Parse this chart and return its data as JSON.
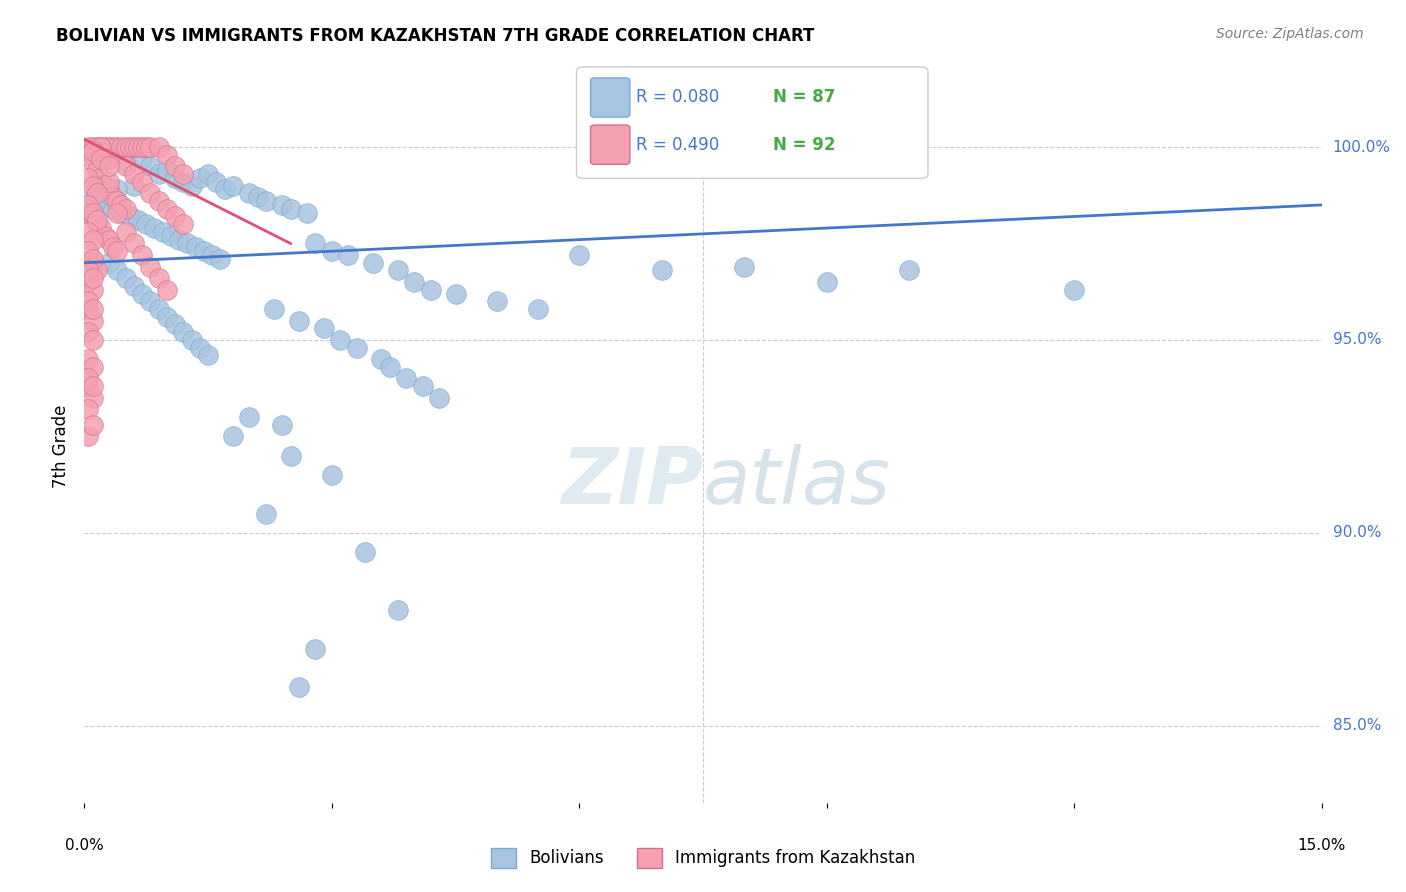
{
  "title": "BOLIVIAN VS IMMIGRANTS FROM KAZAKHSTAN 7TH GRADE CORRELATION CHART",
  "source": "Source: ZipAtlas.com",
  "ylabel": "7th Grade",
  "yticks": [
    85.0,
    90.0,
    95.0,
    100.0
  ],
  "ytick_labels": [
    "85.0%",
    "90.0%",
    "95.0%",
    "100.0%"
  ],
  "xlim": [
    0.0,
    15.0
  ],
  "ylim": [
    83.0,
    101.5
  ],
  "blue_color": "#a8c4e0",
  "pink_color": "#f4a0b0",
  "blue_edge_color": "#7aaad0",
  "pink_edge_color": "#d07090",
  "blue_line_color": "#4477cc",
  "pink_line_color": "#e05070",
  "blue_r_color": "#4477cc",
  "blue_n_color": "#44aa44",
  "pink_r_color": "#4477cc",
  "pink_n_color": "#44aa44",
  "blue_scatter": [
    [
      0.3,
      99.8
    ],
    [
      0.5,
      99.6
    ],
    [
      0.7,
      99.7
    ],
    [
      0.8,
      99.5
    ],
    [
      0.9,
      99.3
    ],
    [
      1.0,
      99.4
    ],
    [
      1.1,
      99.2
    ],
    [
      1.2,
      99.1
    ],
    [
      1.3,
      99.0
    ],
    [
      1.4,
      99.2
    ],
    [
      1.5,
      99.3
    ],
    [
      1.6,
      99.1
    ],
    [
      1.7,
      98.9
    ],
    [
      1.8,
      99.0
    ],
    [
      2.0,
      98.8
    ],
    [
      2.1,
      98.7
    ],
    [
      2.2,
      98.6
    ],
    [
      2.4,
      98.5
    ],
    [
      2.5,
      98.4
    ],
    [
      2.7,
      98.3
    ],
    [
      0.6,
      99.0
    ],
    [
      0.4,
      98.9
    ],
    [
      0.2,
      98.8
    ],
    [
      0.1,
      98.7
    ],
    [
      0.15,
      98.6
    ],
    [
      0.25,
      98.5
    ],
    [
      0.35,
      98.4
    ],
    [
      0.45,
      98.3
    ],
    [
      0.55,
      98.2
    ],
    [
      0.65,
      98.1
    ],
    [
      0.75,
      98.0
    ],
    [
      0.85,
      97.9
    ],
    [
      0.95,
      97.8
    ],
    [
      1.05,
      97.7
    ],
    [
      1.15,
      97.6
    ],
    [
      1.25,
      97.5
    ],
    [
      1.35,
      97.4
    ],
    [
      1.45,
      97.3
    ],
    [
      1.55,
      97.2
    ],
    [
      1.65,
      97.1
    ],
    [
      2.8,
      97.5
    ],
    [
      3.0,
      97.3
    ],
    [
      3.2,
      97.2
    ],
    [
      3.5,
      97.0
    ],
    [
      3.8,
      96.8
    ],
    [
      4.0,
      96.5
    ],
    [
      4.2,
      96.3
    ],
    [
      4.5,
      96.2
    ],
    [
      5.0,
      96.0
    ],
    [
      5.5,
      95.8
    ],
    [
      6.0,
      97.2
    ],
    [
      7.0,
      96.8
    ],
    [
      8.0,
      96.9
    ],
    [
      9.0,
      96.5
    ],
    [
      10.0,
      96.8
    ],
    [
      12.0,
      96.3
    ],
    [
      2.3,
      95.8
    ],
    [
      2.6,
      95.5
    ],
    [
      2.9,
      95.3
    ],
    [
      3.1,
      95.0
    ],
    [
      3.3,
      94.8
    ],
    [
      3.6,
      94.5
    ],
    [
      3.7,
      94.3
    ],
    [
      3.9,
      94.0
    ],
    [
      4.1,
      93.8
    ],
    [
      4.3,
      93.5
    ],
    [
      2.0,
      93.0
    ],
    [
      2.4,
      92.8
    ],
    [
      1.8,
      92.5
    ],
    [
      2.5,
      92.0
    ],
    [
      3.0,
      91.5
    ],
    [
      2.2,
      90.5
    ],
    [
      3.4,
      89.5
    ],
    [
      3.8,
      88.0
    ],
    [
      2.8,
      87.0
    ],
    [
      2.6,
      86.0
    ],
    [
      0.3,
      97.0
    ],
    [
      0.4,
      96.8
    ],
    [
      0.5,
      96.6
    ],
    [
      0.6,
      96.4
    ],
    [
      0.7,
      96.2
    ],
    [
      0.8,
      96.0
    ],
    [
      0.9,
      95.8
    ],
    [
      1.0,
      95.6
    ],
    [
      1.1,
      95.4
    ],
    [
      1.2,
      95.2
    ],
    [
      1.3,
      95.0
    ],
    [
      1.4,
      94.8
    ],
    [
      1.5,
      94.6
    ]
  ],
  "pink_scatter": [
    [
      0.05,
      100.0
    ],
    [
      0.1,
      100.0
    ],
    [
      0.15,
      100.0
    ],
    [
      0.2,
      100.0
    ],
    [
      0.25,
      100.0
    ],
    [
      0.3,
      100.0
    ],
    [
      0.35,
      100.0
    ],
    [
      0.4,
      100.0
    ],
    [
      0.45,
      100.0
    ],
    [
      0.5,
      100.0
    ],
    [
      0.55,
      100.0
    ],
    [
      0.6,
      100.0
    ],
    [
      0.65,
      100.0
    ],
    [
      0.7,
      100.0
    ],
    [
      0.75,
      100.0
    ],
    [
      0.8,
      100.0
    ],
    [
      0.9,
      100.0
    ],
    [
      1.0,
      99.8
    ],
    [
      1.1,
      99.5
    ],
    [
      1.2,
      99.3
    ],
    [
      0.05,
      99.8
    ],
    [
      0.1,
      99.6
    ],
    [
      0.15,
      99.4
    ],
    [
      0.2,
      99.2
    ],
    [
      0.25,
      99.0
    ],
    [
      0.3,
      98.9
    ],
    [
      0.35,
      98.7
    ],
    [
      0.4,
      98.6
    ],
    [
      0.45,
      98.5
    ],
    [
      0.5,
      98.4
    ],
    [
      0.05,
      98.3
    ],
    [
      0.1,
      98.2
    ],
    [
      0.15,
      98.0
    ],
    [
      0.2,
      97.9
    ],
    [
      0.25,
      97.7
    ],
    [
      0.3,
      97.6
    ],
    [
      0.35,
      97.4
    ],
    [
      0.4,
      97.3
    ],
    [
      0.1,
      97.0
    ],
    [
      0.15,
      96.8
    ],
    [
      0.05,
      96.5
    ],
    [
      0.1,
      96.3
    ],
    [
      0.05,
      95.8
    ],
    [
      0.1,
      95.5
    ],
    [
      0.05,
      94.5
    ],
    [
      0.1,
      94.3
    ],
    [
      0.05,
      93.8
    ],
    [
      0.1,
      93.5
    ],
    [
      0.05,
      92.5
    ],
    [
      0.5,
      99.5
    ],
    [
      0.6,
      99.3
    ],
    [
      0.7,
      99.1
    ],
    [
      0.8,
      98.8
    ],
    [
      0.9,
      98.6
    ],
    [
      1.0,
      98.4
    ],
    [
      1.1,
      98.2
    ],
    [
      1.2,
      98.0
    ],
    [
      0.3,
      99.1
    ],
    [
      0.4,
      98.3
    ],
    [
      0.5,
      97.8
    ],
    [
      0.6,
      97.5
    ],
    [
      0.7,
      97.2
    ],
    [
      0.8,
      96.9
    ],
    [
      0.9,
      96.6
    ],
    [
      1.0,
      96.3
    ],
    [
      0.2,
      100.0
    ],
    [
      0.3,
      99.7
    ],
    [
      0.1,
      99.9
    ],
    [
      0.2,
      99.7
    ],
    [
      0.3,
      99.5
    ],
    [
      0.05,
      99.2
    ],
    [
      0.1,
      99.0
    ],
    [
      0.15,
      98.8
    ],
    [
      0.05,
      98.5
    ],
    [
      0.1,
      98.3
    ],
    [
      0.15,
      98.1
    ],
    [
      0.05,
      97.8
    ],
    [
      0.1,
      97.6
    ],
    [
      0.05,
      97.3
    ],
    [
      0.1,
      97.1
    ],
    [
      0.05,
      96.8
    ],
    [
      0.1,
      96.6
    ],
    [
      0.05,
      96.0
    ],
    [
      0.1,
      95.8
    ],
    [
      0.05,
      95.2
    ],
    [
      0.1,
      95.0
    ],
    [
      0.05,
      94.0
    ],
    [
      0.1,
      93.8
    ],
    [
      0.05,
      93.2
    ],
    [
      0.1,
      92.8
    ]
  ],
  "blue_trend_x": [
    0.0,
    15.0
  ],
  "blue_trend_y": [
    97.0,
    98.5
  ],
  "pink_trend_x": [
    0.0,
    2.5
  ],
  "pink_trend_y": [
    100.2,
    97.5
  ],
  "grid_color": "#cccccc",
  "watermark_zip_color": "#ccdde8",
  "watermark_atlas_color": "#b0c8d8"
}
